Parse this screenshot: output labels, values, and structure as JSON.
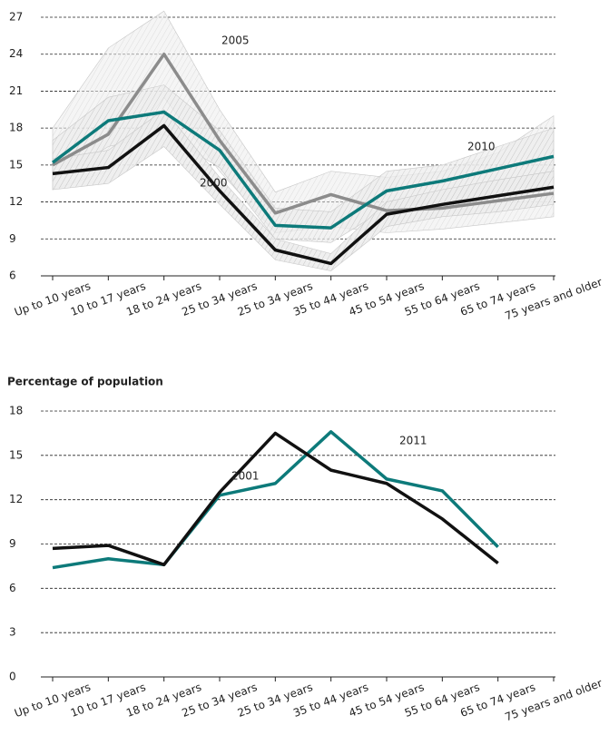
{
  "chart_data": [
    {
      "type": "line",
      "categories": [
        "Up to 10 years",
        "10 to 17 years",
        "18 to 24 years",
        "25 to 34 years",
        "25 to 34 years",
        "35 to 44 years",
        "45 to 54 years",
        "55 to 64 years",
        "65 to 74 years",
        "75 years and older"
      ],
      "ylim": [
        6,
        27
      ],
      "yticks": [
        6,
        9,
        12,
        15,
        18,
        21,
        24,
        27
      ],
      "grid": true,
      "series": [
        {
          "name": "2005",
          "color": "#8c8c8c",
          "values": [
            15.0,
            17.5,
            24.0,
            17.0,
            11.1,
            12.6,
            11.3,
            11.5,
            12.1,
            12.7
          ],
          "lower": [
            13.0,
            14.5,
            20.5,
            14.5,
            9.5,
            10.0,
            9.5,
            9.8,
            10.3,
            10.8
          ],
          "upper": [
            18.0,
            24.5,
            27.5,
            19.5,
            12.8,
            14.5,
            14.0,
            14.5,
            16.0,
            19.0
          ]
        },
        {
          "name": "2010",
          "color": "#0d7a7a",
          "values": [
            15.2,
            18.6,
            19.3,
            16.2,
            10.1,
            9.9,
            12.9,
            13.7,
            14.7,
            15.7
          ],
          "lower": [
            13.8,
            16.5,
            17.5,
            14.8,
            9.0,
            8.7,
            11.5,
            12.0,
            12.5,
            13.0
          ],
          "upper": [
            17.0,
            20.5,
            21.5,
            17.8,
            11.5,
            11.2,
            14.5,
            15.0,
            16.5,
            18.0
          ]
        },
        {
          "name": "2000",
          "color": "#111111",
          "values": [
            14.3,
            14.8,
            18.2,
            12.9,
            8.1,
            7.0,
            11.0,
            11.8,
            12.5,
            13.2
          ],
          "lower": [
            13.0,
            13.5,
            16.5,
            11.8,
            7.3,
            6.4,
            10.0,
            10.8,
            11.2,
            11.8
          ],
          "upper": [
            15.5,
            16.2,
            19.5,
            14.0,
            9.0,
            7.8,
            12.0,
            13.0,
            13.8,
            14.5
          ]
        }
      ]
    },
    {
      "type": "line",
      "ylabel": "Percentage of population",
      "categories": [
        "Up to 10 years",
        "10 to 17 years",
        "18 to 24 years",
        "25 to 34 years",
        "25 to 34 years",
        "35 to 44 years",
        "45 to 54 years",
        "55 to 64 years",
        "65 to 74 years",
        "75 years and older"
      ],
      "ylim": [
        0,
        18
      ],
      "yticks": [
        0,
        3,
        6,
        9,
        12,
        15,
        18
      ],
      "grid": true,
      "series": [
        {
          "name": "2011",
          "color": "#0d7a7a",
          "values": [
            7.4,
            8.0,
            7.6,
            12.3,
            13.1,
            16.6,
            13.4,
            12.6,
            8.8,
            null
          ]
        },
        {
          "name": "2001",
          "color": "#111111",
          "values": [
            8.7,
            8.9,
            7.6,
            12.5,
            16.5,
            14.0,
            13.1,
            10.7,
            7.7,
            null
          ]
        }
      ]
    }
  ]
}
